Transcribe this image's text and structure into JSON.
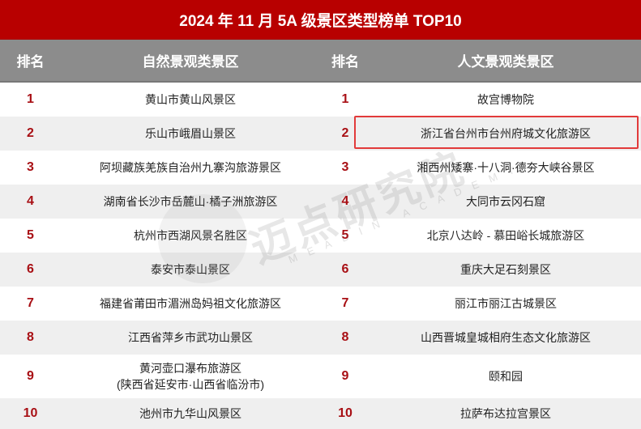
{
  "title": "2024 年 11 月 5A 级景区类型榜单 TOP10",
  "headers": {
    "rank_left": "排名",
    "natural": "自然景观类景区",
    "rank_right": "排名",
    "cultural": "人文景观类景区"
  },
  "rows": [
    {
      "rank": "1",
      "natural": "黄山市黄山风景区",
      "rank2": "1",
      "cultural": "故宫博物院"
    },
    {
      "rank": "2",
      "natural": "乐山市峨眉山景区",
      "rank2": "2",
      "cultural": "浙江省台州市台州府城文化旅游区",
      "highlighted": true
    },
    {
      "rank": "3",
      "natural": "阿坝藏族羌族自治州九寨沟旅游景区",
      "rank2": "3",
      "cultural": "湘西州矮寨·十八洞·德夯大峡谷景区"
    },
    {
      "rank": "4",
      "natural": "湖南省长沙市岳麓山·橘子洲旅游区",
      "rank2": "4",
      "cultural": "大同市云冈石窟"
    },
    {
      "rank": "5",
      "natural": "杭州市西湖风景名胜区",
      "rank2": "5",
      "cultural": "北京八达岭 - 慕田峪长城旅游区"
    },
    {
      "rank": "6",
      "natural": "泰安市泰山景区",
      "rank2": "6",
      "cultural": "重庆大足石刻景区"
    },
    {
      "rank": "7",
      "natural": "福建省莆田市湄洲岛妈祖文化旅游区",
      "rank2": "7",
      "cultural": "丽江市丽江古城景区"
    },
    {
      "rank": "8",
      "natural": "江西省萍乡市武功山景区",
      "rank2": "8",
      "cultural": "山西晋城皇城相府生态文化旅游区"
    },
    {
      "rank": "9",
      "natural": "黄河壶口瀑布旅游区",
      "natural_line2": "(陕西省延安市·山西省临汾市)",
      "rank2": "9",
      "cultural": "颐和园"
    },
    {
      "rank": "10",
      "natural": "池州市九华山风景区",
      "rank2": "10",
      "cultural": "拉萨布达拉宫景区"
    }
  ],
  "watermark": {
    "text": "迈点研究院",
    "subtext": "MEADIN ACADEMY"
  },
  "colors": {
    "title_bg": "#b80000",
    "header_bg": "#8c8c8c",
    "rank_text": "#a80f14",
    "highlight_border": "#e23a3a",
    "even_row_bg": "#efefef"
  }
}
